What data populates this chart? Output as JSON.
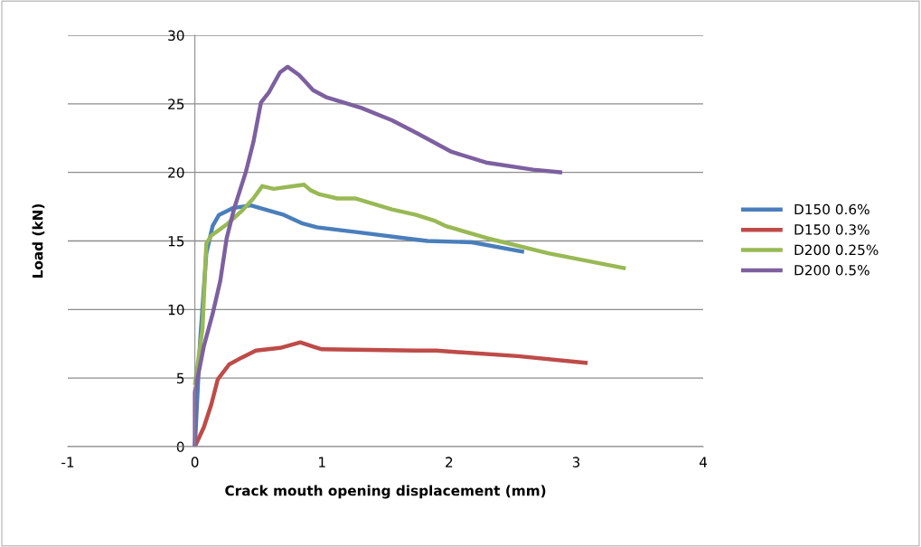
{
  "chart_data": {
    "type": "line",
    "xlabel": "Crack mouth opening displacement (mm)",
    "ylabel": "Load (kN)",
    "xlim": [
      -1,
      4
    ],
    "xticks": [
      -1,
      0,
      1,
      2,
      3,
      4
    ],
    "ylim": [
      0,
      30
    ],
    "yticks": [
      0,
      5,
      10,
      15,
      20,
      25,
      30
    ],
    "grid": "y",
    "legend": "right",
    "marker": "none",
    "line_style": "solid",
    "series": [
      {
        "name": "D150 0.6%",
        "color": "#4a7ebb",
        "x": [
          0,
          0.04,
          0.09,
          0.14,
          0.19,
          0.3,
          0.44,
          0.55,
          0.7,
          0.84,
          0.96,
          1.31,
          1.74,
          1.83,
          2.18,
          2.59
        ],
        "values": [
          0,
          7.5,
          14.1,
          16.1,
          16.9,
          17.4,
          17.6,
          17.3,
          16.9,
          16.3,
          16.0,
          15.6,
          15.1,
          15.0,
          14.9,
          14.2
        ]
      },
      {
        "name": "D150 0.3%",
        "color": "#be4b48",
        "x": [
          0,
          0.07,
          0.13,
          0.18,
          0.27,
          0.37,
          0.48,
          0.67,
          0.83,
          0.93,
          1.0,
          1.74,
          1.9,
          2.54,
          3.09
        ],
        "values": [
          0,
          1.4,
          3.1,
          4.9,
          6.0,
          6.5,
          7.0,
          7.2,
          7.6,
          7.3,
          7.1,
          7.0,
          7.0,
          6.6,
          6.1
        ]
      },
      {
        "name": "D200 0.25%",
        "color": "#98b954",
        "x": [
          0,
          0.06,
          0.09,
          0.13,
          0.25,
          0.37,
          0.46,
          0.53,
          0.62,
          0.86,
          0.91,
          0.98,
          1.12,
          1.26,
          1.55,
          1.74,
          1.88,
          1.97,
          2.3,
          2.78,
          3.39
        ],
        "values": [
          4.5,
          8.6,
          14.8,
          15.4,
          16.2,
          17.2,
          18.1,
          19.0,
          18.8,
          19.1,
          18.7,
          18.4,
          18.1,
          18.1,
          17.3,
          16.9,
          16.5,
          16.1,
          15.2,
          14.1,
          13.0
        ]
      },
      {
        "name": "D200 0.5%",
        "color": "#7d60a0",
        "x": [
          0,
          0,
          0.07,
          0.14,
          0.2,
          0.25,
          0.31,
          0.4,
          0.46,
          0.52,
          0.58,
          0.67,
          0.73,
          0.82,
          0.87,
          0.93,
          1.03,
          1.31,
          1.55,
          1.74,
          2.02,
          2.3,
          2.66,
          2.89
        ],
        "values": [
          0,
          4,
          7.3,
          9.7,
          12.1,
          15.2,
          17.4,
          20.0,
          22.2,
          25.1,
          25.8,
          27.3,
          27.7,
          27.1,
          26.6,
          26.0,
          25.5,
          24.7,
          23.8,
          22.9,
          21.5,
          20.7,
          20.2,
          20.0
        ]
      }
    ]
  }
}
